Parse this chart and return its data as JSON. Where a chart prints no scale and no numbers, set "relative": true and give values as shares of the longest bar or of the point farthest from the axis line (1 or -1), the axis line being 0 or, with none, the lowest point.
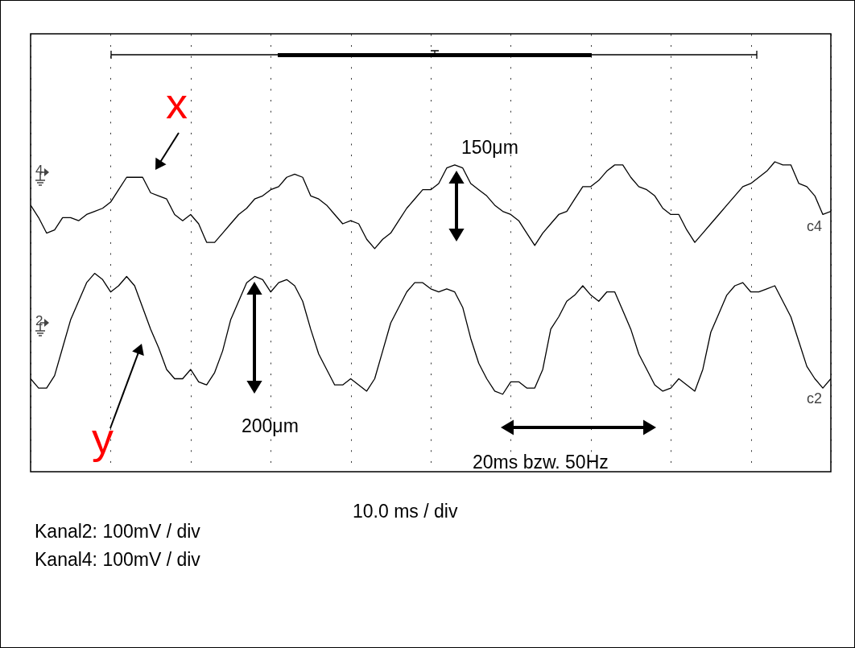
{
  "chart_data": {
    "type": "line",
    "relative": true,
    "grid": "x",
    "categories": [
      null,
      null,
      null,
      null,
      null,
      null,
      null,
      null,
      null,
      null,
      null,
      null,
      null,
      null,
      null,
      null,
      null,
      null,
      null,
      null,
      null,
      null,
      null,
      null,
      null,
      null,
      null,
      null,
      null,
      null,
      null,
      null,
      null,
      null,
      null,
      null,
      null,
      null,
      null,
      null,
      null,
      null,
      null,
      null,
      null,
      null,
      null,
      null,
      null,
      null,
      null,
      null,
      null,
      null,
      null,
      null,
      null,
      null,
      null,
      null,
      null,
      null,
      null,
      null,
      null,
      null,
      null,
      null,
      null,
      null,
      null,
      null,
      null,
      null,
      null,
      null,
      null,
      null,
      null,
      null,
      null,
      null,
      null,
      null,
      null,
      null,
      null,
      null,
      null,
      null,
      null,
      null,
      null,
      null,
      null,
      null,
      null,
      null,
      null,
      null,
      null
    ],
    "series": [
      {
        "color": "#000000",
        "values": [
          0.86,
          0.82,
          0.77,
          0.78,
          0.82,
          0.82,
          0.81,
          0.83,
          0.84,
          0.85,
          0.87,
          0.91,
          0.95,
          0.95,
          0.95,
          0.9,
          0.89,
          0.88,
          0.83,
          0.81,
          0.83,
          0.8,
          0.74,
          0.74,
          0.77,
          0.8,
          0.83,
          0.85,
          0.88,
          0.89,
          0.91,
          0.92,
          0.95,
          0.96,
          0.95,
          0.89,
          0.88,
          0.86,
          0.83,
          0.8,
          0.81,
          0.8,
          0.75,
          0.72,
          0.75,
          0.77,
          0.81,
          0.85,
          0.88,
          0.91,
          0.91,
          0.93,
          0.98,
          0.99,
          0.98,
          0.93,
          0.91,
          0.89,
          0.86,
          0.84,
          0.83,
          0.81,
          0.77,
          0.73,
          0.77,
          0.8,
          0.83,
          0.84,
          0.88,
          0.92,
          0.92,
          0.94,
          0.97,
          0.99,
          0.99,
          0.95,
          0.92,
          0.91,
          0.89,
          0.85,
          0.83,
          0.83,
          0.78,
          0.74,
          0.77,
          0.8,
          0.83,
          0.86,
          0.89,
          0.92,
          0.93,
          0.95,
          0.97,
          1.0,
          0.99,
          0.99,
          0.93,
          0.92,
          0.89,
          0.83,
          0.84
        ]
      },
      {
        "color": "#000000",
        "values": [
          0.3,
          0.27,
          0.27,
          0.31,
          0.4,
          0.49,
          0.55,
          0.61,
          0.64,
          0.62,
          0.58,
          0.6,
          0.63,
          0.6,
          0.53,
          0.46,
          0.4,
          0.33,
          0.3,
          0.3,
          0.33,
          0.29,
          0.28,
          0.32,
          0.39,
          0.49,
          0.55,
          0.61,
          0.63,
          0.62,
          0.58,
          0.61,
          0.62,
          0.6,
          0.55,
          0.46,
          0.38,
          0.33,
          0.28,
          0.28,
          0.3,
          0.28,
          0.26,
          0.3,
          0.39,
          0.48,
          0.53,
          0.58,
          0.61,
          0.61,
          0.59,
          0.58,
          0.59,
          0.58,
          0.53,
          0.43,
          0.35,
          0.3,
          0.26,
          0.25,
          0.29,
          0.29,
          0.27,
          0.27,
          0.33,
          0.46,
          0.5,
          0.55,
          0.57,
          0.6,
          0.57,
          0.55,
          0.58,
          0.58,
          0.52,
          0.46,
          0.38,
          0.33,
          0.28,
          0.26,
          0.27,
          0.3,
          0.28,
          0.26,
          0.33,
          0.45,
          0.51,
          0.57,
          0.6,
          0.61,
          0.58,
          0.58,
          0.59,
          0.6,
          0.55,
          0.5,
          0.42,
          0.34,
          0.3,
          0.27,
          0.3
        ]
      }
    ],
    "annotations": [
      "150μm",
      "200μm",
      "20ms bzw. 50Hz",
      "c4",
      "c2",
      "4",
      "2",
      "10.0 ms / div",
      "Kanal2: 100mV / div",
      "Kanal4: 100mV / div",
      "x",
      "y"
    ]
  }
}
